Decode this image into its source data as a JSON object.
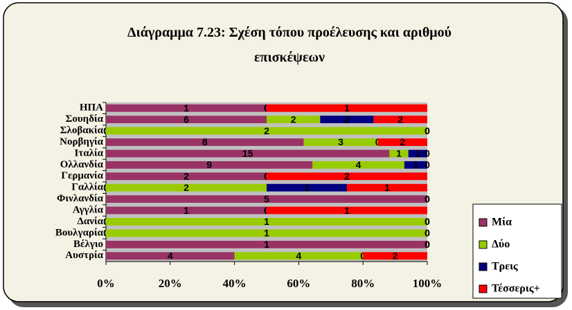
{
  "chart_data": {
    "type": "bar",
    "orientation": "horizontal",
    "stacked": "percent",
    "title": "Διάγραμμα 7.23: Σχέση τόπου προέλευσης και αριθμού επισκέψεων",
    "categories": [
      "ΗΠΑ",
      "Σουηδία",
      "Σλοβακία",
      "Νορβηγία",
      "Ιταλία",
      "Ολλανδία",
      "Γερμανία",
      "Γαλλία",
      "Φινλανδία",
      "Αγγλία",
      "Δανία",
      "Βουλγαρία",
      "Βέλγιο",
      "Αυστρία"
    ],
    "series": [
      {
        "name": "Μία",
        "color": "#993366",
        "values": [
          1,
          6,
          0,
          8,
          15,
          9,
          2,
          0,
          5,
          1,
          0,
          0,
          1,
          4
        ]
      },
      {
        "name": "Δύο",
        "color": "#99cc00",
        "values": [
          0,
          2,
          2,
          3,
          1,
          4,
          0,
          2,
          0,
          0,
          1,
          1,
          0,
          4
        ]
      },
      {
        "name": "Τρεις",
        "color": "#000080",
        "values": [
          0,
          2,
          0,
          0,
          1,
          1,
          0,
          1,
          0,
          0,
          0,
          0,
          0,
          0
        ]
      },
      {
        "name": "Τέσσερις+",
        "color": "#ff0000",
        "values": [
          1,
          2,
          0,
          2,
          0,
          0,
          2,
          1,
          0,
          1,
          0,
          0,
          0,
          2
        ]
      }
    ],
    "xlim": [
      0,
      100
    ],
    "xticks": [
      {
        "value": 0,
        "label": "0%"
      },
      {
        "value": 20,
        "label": "20%"
      },
      {
        "value": 40,
        "label": "40%"
      },
      {
        "value": 60,
        "label": "60%"
      },
      {
        "value": 80,
        "label": "80%"
      },
      {
        "value": 100,
        "label": "100%"
      }
    ],
    "legend": "right"
  }
}
